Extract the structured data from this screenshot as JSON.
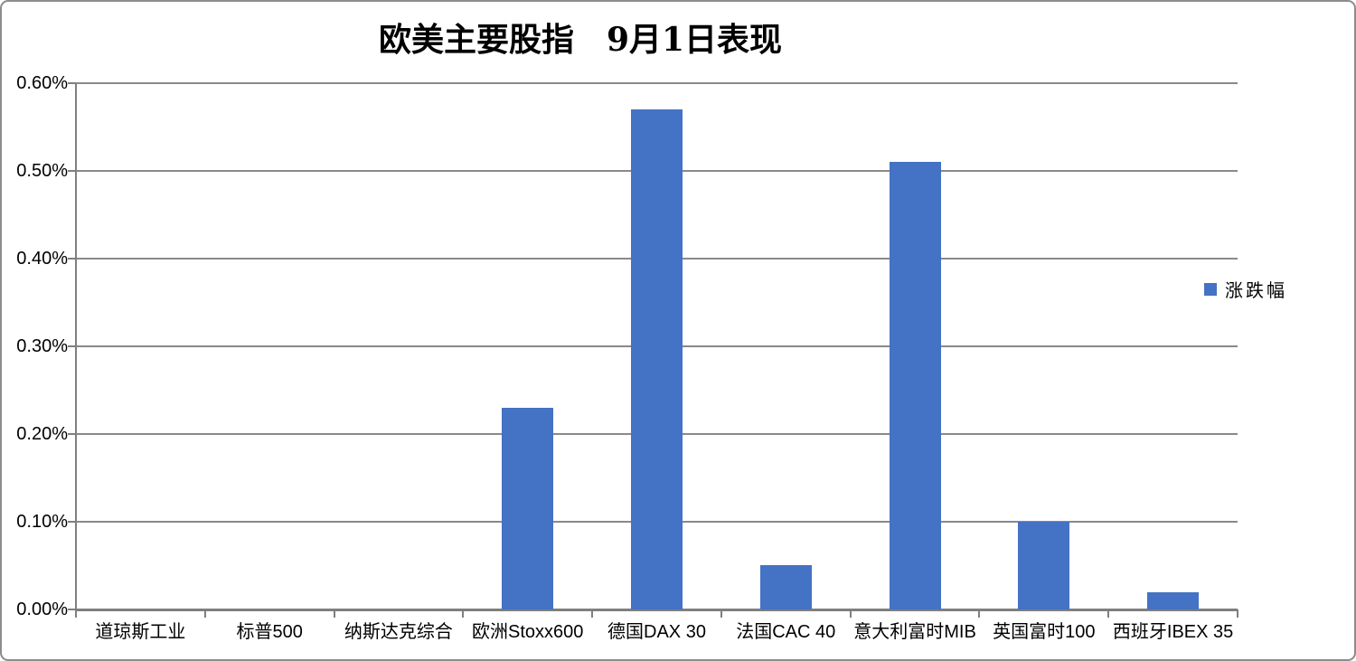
{
  "chart_data": {
    "type": "bar",
    "title": "欧美主要股指　9月1日表现",
    "categories": [
      "道琼斯工业",
      "标普500",
      "纳斯达克综合",
      "欧洲Stoxx600",
      "德国DAX 30",
      "法国CAC 40",
      "意大利富时MIB",
      "英国富时100",
      "西班牙IBEX 35"
    ],
    "series": [
      {
        "name": "涨跌幅",
        "values": [
          0.0,
          0.0,
          0.0,
          0.23,
          0.57,
          0.05,
          0.51,
          0.1,
          0.02
        ],
        "color": "#4472C4"
      }
    ],
    "value_unit": "%",
    "ylim": [
      0,
      0.6
    ],
    "y_tick_step": 0.1,
    "y_tick_labels": [
      "0.00%",
      "0.10%",
      "0.20%",
      "0.30%",
      "0.40%",
      "0.50%",
      "0.60%"
    ],
    "grid": true,
    "legend_position": "right",
    "colors": {
      "bar": "#4472C4",
      "gridline": "#898989",
      "axis": "#7F7F7F",
      "frame_border": "#8C8C8C",
      "text": "#000000"
    }
  }
}
